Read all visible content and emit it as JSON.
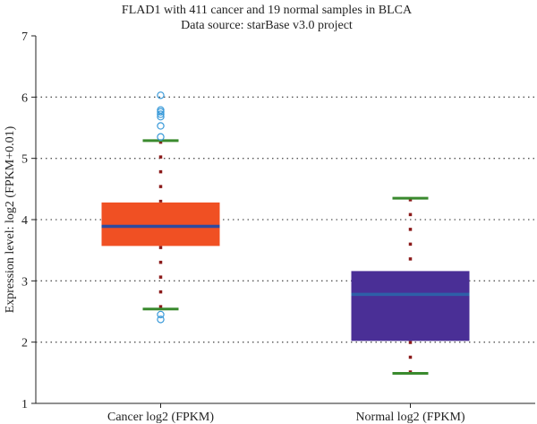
{
  "chart_data": {
    "type": "box",
    "title": "FLAD1 with 411 cancer and 19 normal samples in BLCA",
    "subtitle": "Data source: starBase v3.0 project",
    "xlabel": "",
    "ylabel": "Expression level: log2 (FPKM+0.01)",
    "ylim": [
      1,
      7
    ],
    "yticks": [
      "1",
      "2",
      "3",
      "4",
      "5",
      "6",
      "7"
    ],
    "grid": "horizontal-dotted",
    "categories": [
      "Cancer log2 (FPKM)",
      "Normal log2 (FPKM)"
    ],
    "boxes": [
      {
        "category": "Cancer log2 (FPKM)",
        "whisker_low": 2.54,
        "q1": 3.57,
        "median": 3.89,
        "q3": 4.28,
        "whisker_high": 5.29,
        "outliers": [
          6.03,
          5.79,
          5.76,
          5.72,
          5.68,
          5.53,
          5.35,
          2.45,
          2.37
        ],
        "color": "#f05023",
        "median_color": "#2e4a9e",
        "whisker_color": "#3a8a2e",
        "line_color": "#8b1a1a",
        "outlier_color": "#3a9ad9"
      },
      {
        "category": "Normal log2 (FPKM)",
        "whisker_low": 1.49,
        "q1": 2.02,
        "median": 2.78,
        "q3": 3.16,
        "whisker_high": 4.35,
        "outliers": [],
        "color": "#4a2f96",
        "median_color": "#2e5fa8",
        "whisker_color": "#3a8a2e",
        "line_color": "#8b1a1a",
        "outlier_color": "#3a9ad9"
      }
    ]
  }
}
